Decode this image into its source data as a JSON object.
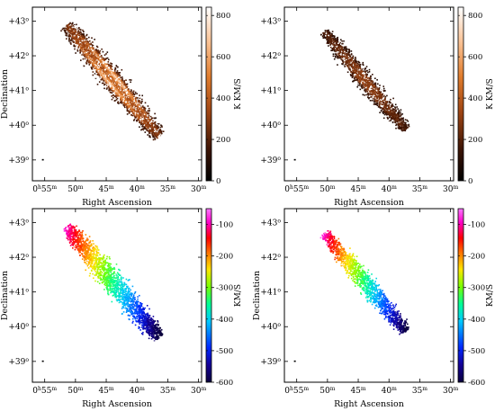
{
  "chart_data": [
    {
      "type": "heatmap",
      "panel": "top-left",
      "xlabel": "Right Ascension",
      "ylabel": "Declination",
      "x_ticks": [
        {
          "h": "0",
          "m": "55",
          "mins": 55
        },
        {
          "h": "",
          "m": "50",
          "mins": 50
        },
        {
          "h": "",
          "m": "45",
          "mins": 45
        },
        {
          "h": "",
          "m": "40",
          "mins": 40
        },
        {
          "h": "",
          "m": "35",
          "mins": 35
        },
        {
          "h": "",
          "m": "30",
          "mins": 30
        }
      ],
      "xlim": [
        57.0,
        29.5
      ],
      "y_ticks": [
        {
          "label": "+39",
          "deg": 39
        },
        {
          "label": "+40",
          "deg": 40
        },
        {
          "label": "+41",
          "deg": 41
        },
        {
          "label": "+42",
          "deg": 42
        },
        {
          "label": "+43",
          "deg": 43
        }
      ],
      "ylim": [
        38.4,
        43.4
      ],
      "colorbar": {
        "label": "K KM/S",
        "ticks": [
          0,
          200,
          400,
          600,
          800
        ],
        "range": [
          0,
          840
        ],
        "colormap": "heat"
      },
      "extent": "full",
      "values_range": [
        0,
        800
      ]
    },
    {
      "type": "heatmap",
      "panel": "top-right",
      "xlabel": "Right Ascension",
      "ylabel": "",
      "x_ticks": [
        {
          "h": "0",
          "m": "55",
          "mins": 55
        },
        {
          "h": "",
          "m": "50",
          "mins": 50
        },
        {
          "h": "",
          "m": "45",
          "mins": 45
        },
        {
          "h": "",
          "m": "40",
          "mins": 40
        },
        {
          "h": "",
          "m": "35",
          "mins": 35
        },
        {
          "h": "",
          "m": "30",
          "mins": 30
        }
      ],
      "xlim": [
        57.0,
        29.5
      ],
      "y_ticks": [
        {
          "label": "+39",
          "deg": 39
        },
        {
          "label": "+40",
          "deg": 40
        },
        {
          "label": "+41",
          "deg": 41
        },
        {
          "label": "+42",
          "deg": 42
        },
        {
          "label": "+43",
          "deg": 43
        }
      ],
      "ylim": [
        38.4,
        43.4
      ],
      "colorbar": {
        "label": "K KM/S",
        "ticks": [
          0,
          200,
          400,
          600,
          800
        ],
        "range": [
          0,
          840
        ],
        "colormap": "heat"
      },
      "extent": "partial",
      "values_range": [
        0,
        450
      ]
    },
    {
      "type": "heatmap",
      "panel": "bottom-left",
      "xlabel": "Right Ascension",
      "ylabel": "Declination",
      "x_ticks": [
        {
          "h": "0",
          "m": "55",
          "mins": 55
        },
        {
          "h": "",
          "m": "50",
          "mins": 50
        },
        {
          "h": "",
          "m": "45",
          "mins": 45
        },
        {
          "h": "",
          "m": "40",
          "mins": 40
        },
        {
          "h": "",
          "m": "35",
          "mins": 35
        },
        {
          "h": "",
          "m": "30",
          "mins": 30
        }
      ],
      "xlim": [
        57.0,
        29.5
      ],
      "y_ticks": [
        {
          "label": "+39",
          "deg": 39
        },
        {
          "label": "+40",
          "deg": 40
        },
        {
          "label": "+41",
          "deg": 41
        },
        {
          "label": "+42",
          "deg": 42
        },
        {
          "label": "+43",
          "deg": 43
        }
      ],
      "ylim": [
        38.4,
        43.4
      ],
      "colorbar": {
        "label": "KM/S",
        "ticks": [
          -600,
          -500,
          -400,
          -300,
          -200,
          -100
        ],
        "range": [
          -600,
          -50
        ],
        "colormap": "rainbow"
      },
      "extent": "full",
      "values_range": [
        -600,
        -60
      ]
    },
    {
      "type": "heatmap",
      "panel": "bottom-right",
      "xlabel": "Right Ascension",
      "ylabel": "Declination",
      "x_ticks": [
        {
          "h": "0",
          "m": "55",
          "mins": 55
        },
        {
          "h": "",
          "m": "50",
          "mins": 50
        },
        {
          "h": "",
          "m": "45",
          "mins": 45
        },
        {
          "h": "",
          "m": "40",
          "mins": 40
        },
        {
          "h": "",
          "m": "35",
          "mins": 35
        },
        {
          "h": "",
          "m": "30",
          "mins": 30
        }
      ],
      "xlim": [
        57.0,
        29.5
      ],
      "y_ticks": [
        {
          "label": "+39",
          "deg": 39
        },
        {
          "label": "+40",
          "deg": 40
        },
        {
          "label": "+41",
          "deg": 41
        },
        {
          "label": "+42",
          "deg": 42
        },
        {
          "label": "+43",
          "deg": 43
        }
      ],
      "ylim": [
        38.4,
        43.4
      ],
      "colorbar": {
        "label": "KM/S",
        "ticks": [
          -600,
          -500,
          -400,
          -300,
          -200,
          -100
        ],
        "range": [
          -600,
          -50
        ],
        "colormap": "rainbow"
      },
      "extent": "partial",
      "values_range": [
        -600,
        -60
      ]
    }
  ]
}
